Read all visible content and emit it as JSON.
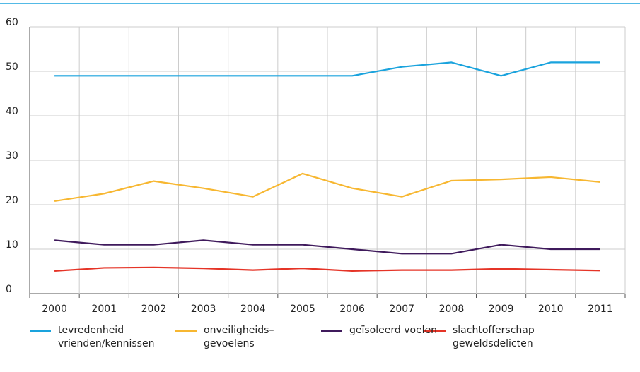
{
  "chart_data": {
    "type": "line",
    "categories": [
      "2000",
      "2001",
      "2002",
      "2003",
      "2004",
      "2005",
      "2006",
      "2007",
      "2008",
      "2009",
      "2010",
      "2011"
    ],
    "ylim": [
      0,
      60
    ],
    "yticks": [
      0,
      10,
      20,
      30,
      40,
      50,
      60
    ],
    "grid": true,
    "legend": "bottom",
    "series": [
      {
        "name": "tevredenheid\nvrienden/kennissen",
        "color": "#1aa3dd",
        "values": [
          49,
          49,
          49,
          49,
          49,
          49,
          49,
          51,
          52,
          49,
          52,
          52
        ]
      },
      {
        "name": "onveiligheids–\ngevoelens",
        "color": "#f7b731",
        "values": [
          20.8,
          22.5,
          25.3,
          23.7,
          21.8,
          27,
          23.7,
          21.8,
          25.4,
          25.7,
          26.2,
          25.1
        ]
      },
      {
        "name": "geïsoleerd voelen",
        "color": "#3f1a5c",
        "values": [
          12,
          11,
          11,
          12,
          11,
          11,
          10,
          9,
          9,
          11,
          10,
          10
        ]
      },
      {
        "name": "slachtofferschap\ngeweldsdelicten",
        "color": "#e53427",
        "values": [
          5.1,
          5.8,
          5.9,
          5.7,
          5.3,
          5.7,
          5.1,
          5.3,
          5.3,
          5.6,
          5.4,
          5.2
        ]
      }
    ]
  }
}
